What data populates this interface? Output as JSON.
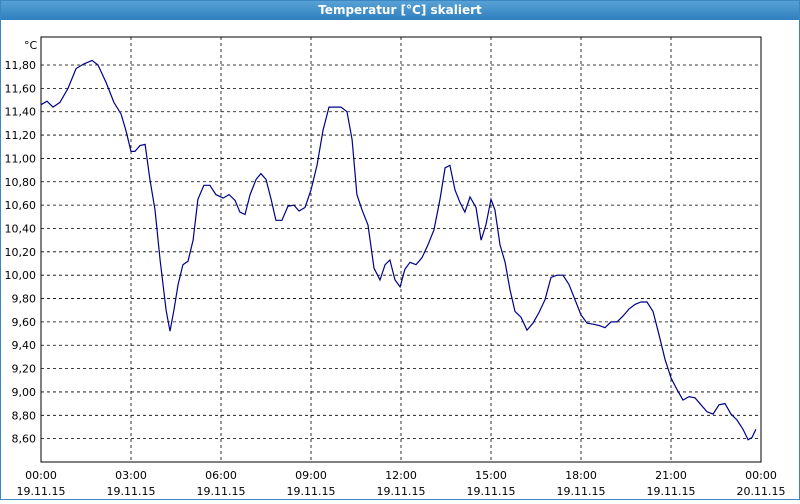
{
  "chart_data": {
    "type": "line",
    "title": "Temperatur [°C] skaliert",
    "y_unit": "°C",
    "xlim": [
      0,
      24
    ],
    "ylim": [
      8.4,
      12.04
    ],
    "grid": true,
    "xticks": [
      {
        "value": 0,
        "label": "00:00",
        "date": "19.11.15"
      },
      {
        "value": 3,
        "label": "03:00",
        "date": "19.11.15"
      },
      {
        "value": 6,
        "label": "06:00",
        "date": "19.11.15"
      },
      {
        "value": 9,
        "label": "09:00",
        "date": "19.11.15"
      },
      {
        "value": 12,
        "label": "12:00",
        "date": "19.11.15"
      },
      {
        "value": 15,
        "label": "15:00",
        "date": "19.11.15"
      },
      {
        "value": 18,
        "label": "18:00",
        "date": "19.11.15"
      },
      {
        "value": 21,
        "label": "21:00",
        "date": "19.11.15"
      },
      {
        "value": 24,
        "label": "00:00",
        "date": "20.11.15"
      }
    ],
    "yticks": [
      {
        "value": 8.6,
        "label": "8,60"
      },
      {
        "value": 8.8,
        "label": "8,80"
      },
      {
        "value": 9.0,
        "label": "9,00"
      },
      {
        "value": 9.2,
        "label": "9,20"
      },
      {
        "value": 9.4,
        "label": "9,40"
      },
      {
        "value": 9.6,
        "label": "9,60"
      },
      {
        "value": 9.8,
        "label": "9,80"
      },
      {
        "value": 10.0,
        "label": "10,00"
      },
      {
        "value": 10.2,
        "label": "10,20"
      },
      {
        "value": 10.4,
        "label": "10,40"
      },
      {
        "value": 10.6,
        "label": "10,60"
      },
      {
        "value": 10.8,
        "label": "10,80"
      },
      {
        "value": 11.0,
        "label": "11,00"
      },
      {
        "value": 11.2,
        "label": "11,20"
      },
      {
        "value": 11.4,
        "label": "11,40"
      },
      {
        "value": 11.6,
        "label": "11,60"
      },
      {
        "value": 11.8,
        "label": "11,80"
      }
    ],
    "x": [
      0,
      0.2,
      0.4,
      0.63,
      0.9,
      1.17,
      1.43,
      1.7,
      1.9,
      2.17,
      2.43,
      2.67,
      2.83,
      3.0,
      3.13,
      3.3,
      3.47,
      3.63,
      3.8,
      3.97,
      4.17,
      4.3,
      4.43,
      4.57,
      4.73,
      4.9,
      5.07,
      5.23,
      5.43,
      5.63,
      5.83,
      6.07,
      6.27,
      6.47,
      6.63,
      6.8,
      6.97,
      7.17,
      7.33,
      7.5,
      7.67,
      7.83,
      8.03,
      8.23,
      8.43,
      8.6,
      8.8,
      9.0,
      9.2,
      9.4,
      9.6,
      9.8,
      10.0,
      10.2,
      10.37,
      10.53,
      10.7,
      10.9,
      11.1,
      11.3,
      11.47,
      11.63,
      11.8,
      11.97,
      12.13,
      12.3,
      12.5,
      12.7,
      12.9,
      13.1,
      13.3,
      13.47,
      13.63,
      13.8,
      13.97,
      14.13,
      14.3,
      14.5,
      14.67,
      14.83,
      15.0,
      15.13,
      15.3,
      15.47,
      15.63,
      15.8,
      16.0,
      16.2,
      16.4,
      16.6,
      16.8,
      17.0,
      17.2,
      17.4,
      17.6,
      17.8,
      18.0,
      18.2,
      18.4,
      18.6,
      18.8,
      19.0,
      19.2,
      19.4,
      19.6,
      19.8,
      20.0,
      20.2,
      20.4,
      20.6,
      20.8,
      21.0,
      21.2,
      21.4,
      21.6,
      21.8,
      22.0,
      22.2,
      22.4,
      22.6,
      22.8,
      23.0,
      23.2,
      23.4,
      23.57,
      23.7,
      23.83
    ],
    "series": [
      {
        "color": "#00008b",
        "values": [
          11.46,
          11.49,
          11.44,
          11.48,
          11.6,
          11.77,
          11.81,
          11.84,
          11.8,
          11.65,
          11.48,
          11.38,
          11.24,
          11.06,
          11.06,
          11.11,
          11.12,
          10.82,
          10.56,
          10.13,
          9.7,
          9.52,
          9.7,
          9.92,
          10.09,
          10.12,
          10.3,
          10.65,
          10.77,
          10.77,
          10.69,
          10.66,
          10.69,
          10.64,
          10.54,
          10.52,
          10.69,
          10.82,
          10.87,
          10.82,
          10.65,
          10.47,
          10.47,
          10.59,
          10.6,
          10.55,
          10.58,
          10.73,
          10.94,
          11.24,
          11.44,
          11.44,
          11.44,
          11.4,
          11.16,
          10.69,
          10.56,
          10.43,
          10.06,
          9.96,
          10.09,
          10.13,
          9.96,
          9.9,
          10.05,
          10.11,
          10.09,
          10.15,
          10.26,
          10.39,
          10.65,
          10.92,
          10.94,
          10.73,
          10.62,
          10.54,
          10.67,
          10.58,
          10.3,
          10.43,
          10.65,
          10.56,
          10.26,
          10.11,
          9.88,
          9.69,
          9.64,
          9.53,
          9.59,
          9.68,
          9.79,
          9.98,
          10.0,
          10.0,
          9.92,
          9.79,
          9.66,
          9.59,
          9.58,
          9.57,
          9.55,
          9.6,
          9.6,
          9.65,
          9.71,
          9.75,
          9.77,
          9.77,
          9.69,
          9.49,
          9.28,
          9.12,
          9.02,
          8.93,
          8.96,
          8.95,
          8.89,
          8.83,
          8.81,
          8.89,
          8.9,
          8.81,
          8.76,
          8.68,
          8.59,
          8.61,
          8.68
        ]
      }
    ]
  }
}
